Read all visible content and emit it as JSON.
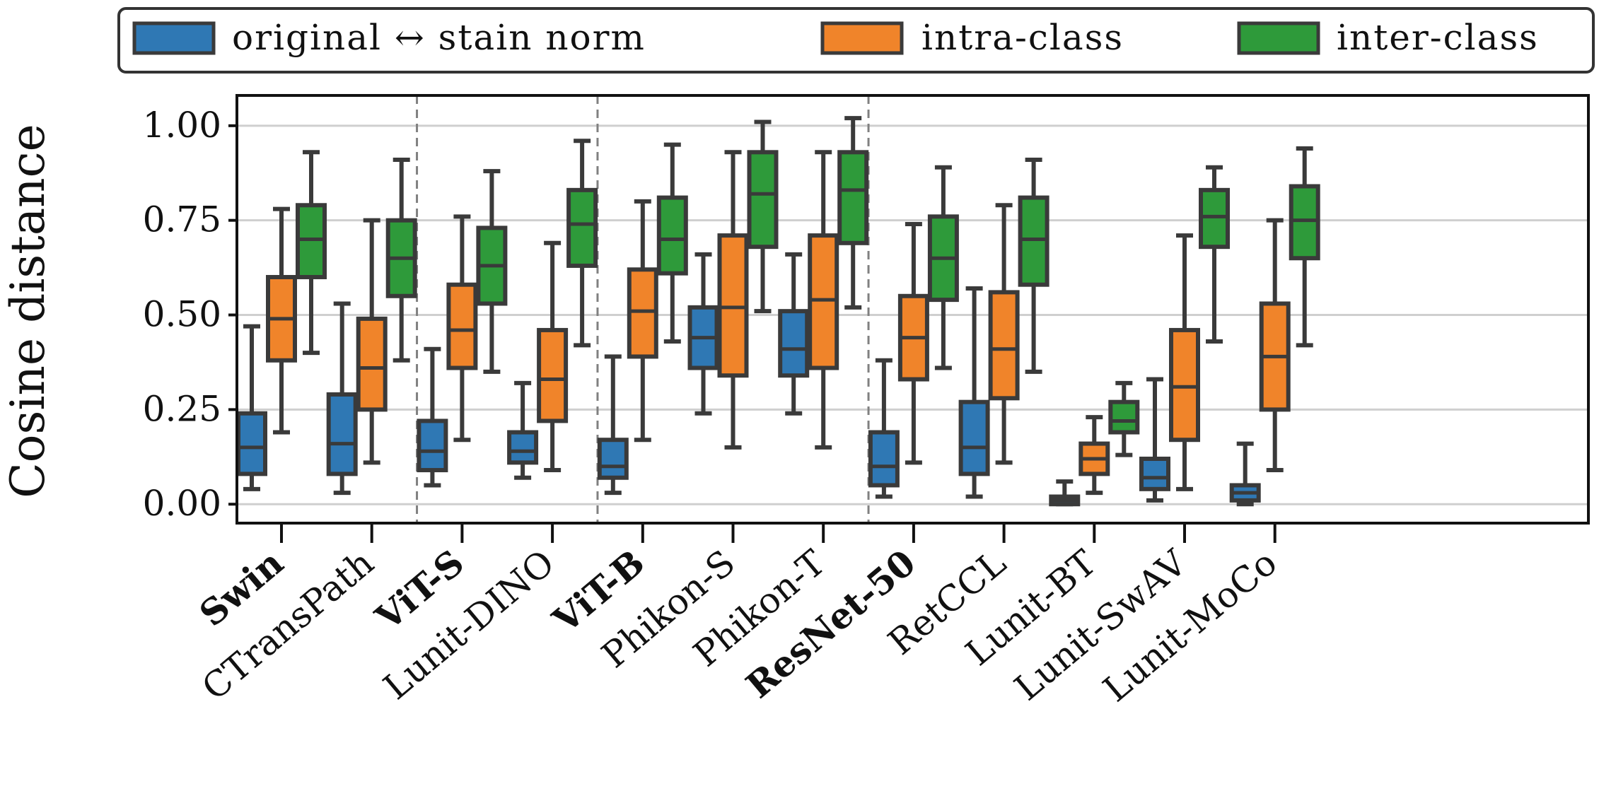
{
  "chart_data": {
    "type": "box",
    "ylabel": "Cosine distance",
    "ylim": [
      -0.05,
      1.08
    ],
    "yticks": [
      "0.00",
      "0.25",
      "0.50",
      "0.75",
      "1.00"
    ],
    "ytick_values": [
      0,
      0.25,
      0.5,
      0.75,
      1.0
    ],
    "grid": "horizontal",
    "legend_position": "top",
    "legend": [
      {
        "key": "orig",
        "label": "original ↔ stain norm",
        "color": "#2f78b4"
      },
      {
        "key": "intra",
        "label": "intra-class",
        "color": "#f0842a"
      },
      {
        "key": "inter",
        "label": "inter-class",
        "color": "#2e9a3a"
      }
    ],
    "group_separators_after": [
      1,
      3,
      6
    ],
    "categories": [
      {
        "label": "Swin",
        "bold": true,
        "boxes": {
          "orig": {
            "min": 0.04,
            "q1": 0.08,
            "median": 0.15,
            "q3": 0.24,
            "max": 0.47
          },
          "intra": {
            "min": 0.19,
            "q1": 0.38,
            "median": 0.49,
            "q3": 0.6,
            "max": 0.78
          },
          "inter": {
            "min": 0.4,
            "q1": 0.6,
            "median": 0.7,
            "q3": 0.79,
            "max": 0.93
          }
        }
      },
      {
        "label": "CTransPath",
        "bold": false,
        "boxes": {
          "orig": {
            "min": 0.03,
            "q1": 0.08,
            "median": 0.16,
            "q3": 0.29,
            "max": 0.53
          },
          "intra": {
            "min": 0.11,
            "q1": 0.25,
            "median": 0.36,
            "q3": 0.49,
            "max": 0.75
          },
          "inter": {
            "min": 0.38,
            "q1": 0.55,
            "median": 0.65,
            "q3": 0.75,
            "max": 0.91
          }
        }
      },
      {
        "label": "ViT-S",
        "bold": true,
        "boxes": {
          "orig": {
            "min": 0.05,
            "q1": 0.09,
            "median": 0.14,
            "q3": 0.22,
            "max": 0.41
          },
          "intra": {
            "min": 0.17,
            "q1": 0.36,
            "median": 0.46,
            "q3": 0.58,
            "max": 0.76
          },
          "inter": {
            "min": 0.35,
            "q1": 0.53,
            "median": 0.63,
            "q3": 0.73,
            "max": 0.88
          }
        }
      },
      {
        "label": "Lunit-DINO",
        "bold": false,
        "boxes": {
          "orig": {
            "min": 0.07,
            "q1": 0.11,
            "median": 0.14,
            "q3": 0.19,
            "max": 0.32
          },
          "intra": {
            "min": 0.09,
            "q1": 0.22,
            "median": 0.33,
            "q3": 0.46,
            "max": 0.69
          },
          "inter": {
            "min": 0.42,
            "q1": 0.63,
            "median": 0.74,
            "q3": 0.83,
            "max": 0.96
          }
        }
      },
      {
        "label": "ViT-B",
        "bold": true,
        "boxes": {
          "orig": {
            "min": 0.03,
            "q1": 0.07,
            "median": 0.1,
            "q3": 0.17,
            "max": 0.39
          },
          "intra": {
            "min": 0.17,
            "q1": 0.39,
            "median": 0.51,
            "q3": 0.62,
            "max": 0.8
          },
          "inter": {
            "min": 0.43,
            "q1": 0.61,
            "median": 0.7,
            "q3": 0.81,
            "max": 0.95
          }
        }
      },
      {
        "label": "Phikon-S",
        "bold": false,
        "boxes": {
          "orig": {
            "min": 0.24,
            "q1": 0.36,
            "median": 0.44,
            "q3": 0.52,
            "max": 0.66
          },
          "intra": {
            "min": 0.15,
            "q1": 0.34,
            "median": 0.52,
            "q3": 0.71,
            "max": 0.93
          },
          "inter": {
            "min": 0.51,
            "q1": 0.68,
            "median": 0.82,
            "q3": 0.93,
            "max": 1.01
          }
        }
      },
      {
        "label": "Phikon-T",
        "bold": false,
        "boxes": {
          "orig": {
            "min": 0.24,
            "q1": 0.34,
            "median": 0.41,
            "q3": 0.51,
            "max": 0.66
          },
          "intra": {
            "min": 0.15,
            "q1": 0.36,
            "median": 0.54,
            "q3": 0.71,
            "max": 0.93
          },
          "inter": {
            "min": 0.52,
            "q1": 0.69,
            "median": 0.83,
            "q3": 0.93,
            "max": 1.02
          }
        }
      },
      {
        "label": "ResNet-50",
        "bold": true,
        "boxes": {
          "orig": {
            "min": 0.02,
            "q1": 0.05,
            "median": 0.1,
            "q3": 0.19,
            "max": 0.38
          },
          "intra": {
            "min": 0.11,
            "q1": 0.33,
            "median": 0.44,
            "q3": 0.55,
            "max": 0.74
          },
          "inter": {
            "min": 0.36,
            "q1": 0.54,
            "median": 0.65,
            "q3": 0.76,
            "max": 0.89
          }
        }
      },
      {
        "label": "RetCCL",
        "bold": false,
        "boxes": {
          "orig": {
            "min": 0.02,
            "q1": 0.08,
            "median": 0.15,
            "q3": 0.27,
            "max": 0.57
          },
          "intra": {
            "min": 0.11,
            "q1": 0.28,
            "median": 0.41,
            "q3": 0.56,
            "max": 0.79
          },
          "inter": {
            "min": 0.35,
            "q1": 0.58,
            "median": 0.7,
            "q3": 0.81,
            "max": 0.91
          }
        }
      },
      {
        "label": "Lunit-BT",
        "bold": false,
        "boxes": {
          "orig": {
            "min": 0.0,
            "q1": 0.0,
            "median": 0.01,
            "q3": 0.02,
            "max": 0.06
          },
          "intra": {
            "min": 0.03,
            "q1": 0.08,
            "median": 0.12,
            "q3": 0.16,
            "max": 0.23
          },
          "inter": {
            "min": 0.13,
            "q1": 0.19,
            "median": 0.22,
            "q3": 0.27,
            "max": 0.32
          }
        }
      },
      {
        "label": "Lunit-SwAV",
        "bold": false,
        "boxes": {
          "orig": {
            "min": 0.01,
            "q1": 0.04,
            "median": 0.07,
            "q3": 0.12,
            "max": 0.33
          },
          "intra": {
            "min": 0.04,
            "q1": 0.17,
            "median": 0.31,
            "q3": 0.46,
            "max": 0.71
          },
          "inter": {
            "min": 0.43,
            "q1": 0.68,
            "median": 0.76,
            "q3": 0.83,
            "max": 0.89
          }
        }
      },
      {
        "label": "Lunit-MoCo",
        "bold": false,
        "boxes": {
          "orig": {
            "min": 0.0,
            "q1": 0.01,
            "median": 0.03,
            "q3": 0.05,
            "max": 0.16
          },
          "intra": {
            "min": 0.09,
            "q1": 0.25,
            "median": 0.39,
            "q3": 0.53,
            "max": 0.75
          },
          "inter": {
            "min": 0.42,
            "q1": 0.65,
            "median": 0.75,
            "q3": 0.84,
            "max": 0.94
          }
        }
      }
    ]
  }
}
